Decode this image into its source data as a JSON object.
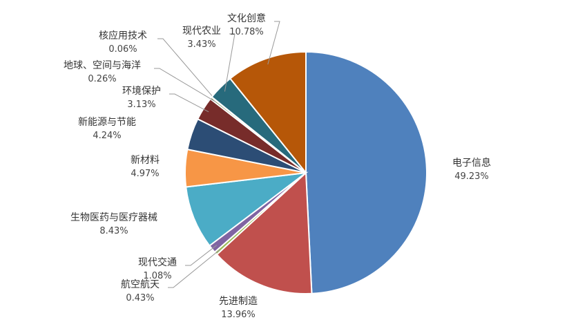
{
  "chart_data": {
    "type": "pie",
    "categories": [
      "电子信息",
      "先进制造",
      "航空航天",
      "现代交通",
      "生物医药与医疗器械",
      "新材料",
      "新能源与节能",
      "环境保护",
      "地球、空间与海洋",
      "核应用技术",
      "现代农业",
      "文化创意"
    ],
    "values": [
      49.23,
      13.96,
      0.43,
      1.08,
      8.43,
      4.97,
      4.24,
      3.13,
      0.26,
      0.06,
      3.43,
      10.78
    ],
    "value_labels": [
      "49.23%",
      "13.96%",
      "0.43%",
      "1.08%",
      "8.43%",
      "4.97%",
      "4.24%",
      "3.13%",
      "0.26%",
      "0.06%",
      "3.43%",
      "10.78%"
    ],
    "colors": [
      "#4f81bd",
      "#c0504d",
      "#9bbb59",
      "#8064a2",
      "#4bacc6",
      "#f79646",
      "#2c4d75",
      "#772c2a",
      "#5f7530",
      "#4d3b62",
      "#276a7c",
      "#b65708"
    ]
  }
}
